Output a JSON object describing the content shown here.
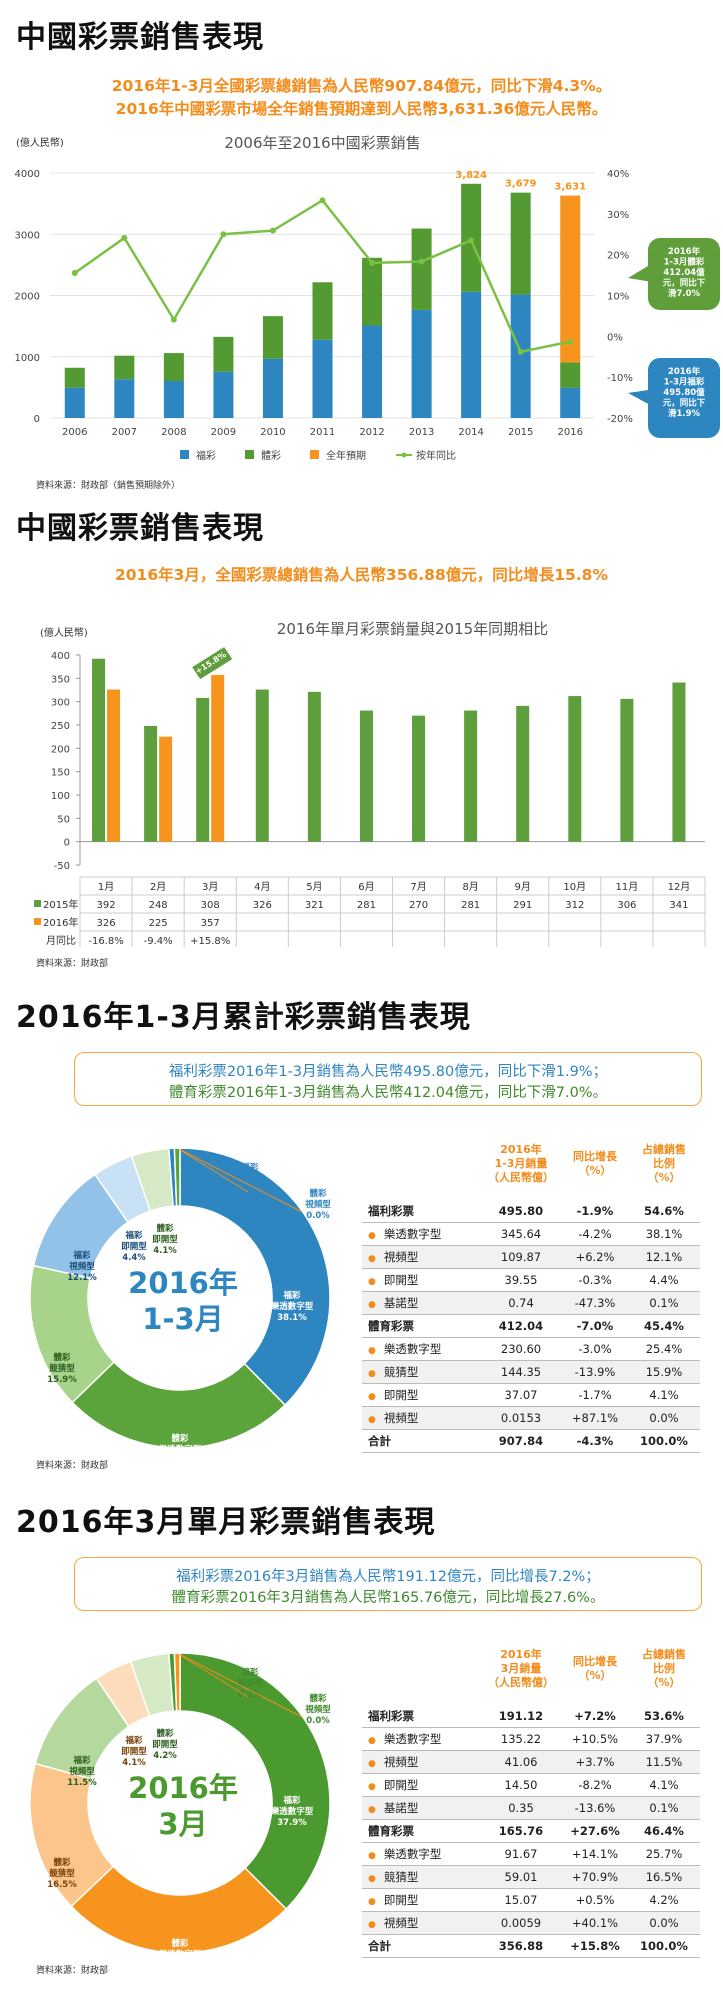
{
  "colors": {
    "welfare": "#2e86c1",
    "sports": "#549a32",
    "forecast": "#f7941d",
    "yoy": "#7ac043",
    "y2015": "#5e9e3c",
    "y2016": "#f7941d",
    "welfare_text": "#2e86c1",
    "sports_text": "#3f8a2e",
    "highlight": "#f28c1c"
  },
  "s1": {
    "title": "中國彩票銷售表現",
    "hl1": "2016年1-3月全國彩票總銷售為人民幣907.84億元，同比下滑4.3%。",
    "hl2": "2016年中國彩票市場全年銷售預期達到人民幣3,631.36億元人民幣。",
    "ylabel": "(億人民幣)",
    "source": "資料來源：財政部（銷售預期除外）",
    "callout_sports": "2016年\n1-3月體彩\n412.04億\n元，同比下\n滑7.0%",
    "callout_welfare": "2016年\n1-3月福彩\n495.80億\n元，同比下\n滑1.9%"
  },
  "s2": {
    "title": "中國彩票銷售表現",
    "hl": "2016年3月，全國彩票總銷售為人民幣356.88億元，同比增長15.8%",
    "ylabel": "(億人民幣)",
    "source": "資料來源：財政部",
    "tbl_row_yoy": "月同比"
  },
  "s3": {
    "title": "2016年1-3月累計彩票銷售表現",
    "box1": "福利彩票2016年1-3月銷售為人民幣495.80億元，同比下滑1.9%；",
    "box2": "體育彩票2016年1-3月銷售為人民幣412.04億元，同比下滑7.0%。",
    "center1": "2016年",
    "center2": "1-3月",
    "source": "資料來源：財政部",
    "col1": "2016年\n1-3月銷量\n（人民幣億）",
    "col2": "同比增長\n（%）",
    "col3": "占總銷售\n比例\n（%）",
    "rows": [
      {
        "name": "福利彩票",
        "v": "495.80",
        "g": "-1.9%",
        "p": "54.6%",
        "kind": "grp"
      },
      {
        "name": "樂透數字型",
        "v": "345.64",
        "g": "-4.2%",
        "p": "38.1%",
        "kind": "sub"
      },
      {
        "name": "視頻型",
        "v": "109.87",
        "g": "+6.2%",
        "p": "12.1%",
        "kind": "sub"
      },
      {
        "name": "即開型",
        "v": "39.55",
        "g": "-0.3%",
        "p": "4.4%",
        "kind": "sub"
      },
      {
        "name": "基諾型",
        "v": "0.74",
        "g": "-47.3%",
        "p": "0.1%",
        "kind": "sub"
      },
      {
        "name": "體育彩票",
        "v": "412.04",
        "g": "-7.0%",
        "p": "45.4%",
        "kind": "grp"
      },
      {
        "name": "樂透數字型",
        "v": "230.60",
        "g": "-3.0%",
        "p": "25.4%",
        "kind": "sub"
      },
      {
        "name": "競猜型",
        "v": "144.35",
        "g": "-13.9%",
        "p": "15.9%",
        "kind": "sub"
      },
      {
        "name": "即開型",
        "v": "37.07",
        "g": "-1.7%",
        "p": "4.1%",
        "kind": "sub"
      },
      {
        "name": "視頻型",
        "v": "0.0153",
        "g": "+87.1%",
        "p": "0.0%",
        "kind": "sub"
      },
      {
        "name": "合計",
        "v": "907.84",
        "g": "-4.3%",
        "p": "100.0%",
        "kind": "tot"
      }
    ]
  },
  "s4": {
    "title": "2016年3月單月彩票銷售表現",
    "box1": "福利彩票2016年3月銷售為人民幣191.12億元，同比增長7.2%；",
    "box2": "體育彩票2016年3月銷售為人民幣165.76億元，同比增長27.6%。",
    "center1": "2016年",
    "center2": "3月",
    "source": "資料來源：財政部",
    "col1": "2016年\n3月銷量\n（人民幣億）",
    "col2": "同比增長\n（%）",
    "col3": "占總銷售\n比例\n（%）",
    "rows": [
      {
        "name": "福利彩票",
        "v": "191.12",
        "g": "+7.2%",
        "p": "53.6%",
        "kind": "grp"
      },
      {
        "name": "樂透數字型",
        "v": "135.22",
        "g": "+10.5%",
        "p": "37.9%",
        "kind": "sub"
      },
      {
        "name": "視頻型",
        "v": "41.06",
        "g": "+3.7%",
        "p": "11.5%",
        "kind": "sub"
      },
      {
        "name": "即開型",
        "v": "14.50",
        "g": "-8.2%",
        "p": "4.1%",
        "kind": "sub"
      },
      {
        "name": "基諾型",
        "v": "0.35",
        "g": "-13.6%",
        "p": "0.1%",
        "kind": "sub"
      },
      {
        "name": "體育彩票",
        "v": "165.76",
        "g": "+27.6%",
        "p": "46.4%",
        "kind": "grp"
      },
      {
        "name": "樂透數字型",
        "v": "91.67",
        "g": "+14.1%",
        "p": "25.7%",
        "kind": "sub"
      },
      {
        "name": "競猜型",
        "v": "59.01",
        "g": "+70.9%",
        "p": "16.5%",
        "kind": "sub"
      },
      {
        "name": "即開型",
        "v": "15.07",
        "g": "+0.5%",
        "p": "4.2%",
        "kind": "sub"
      },
      {
        "name": "視頻型",
        "v": "0.0059",
        "g": "+40.1%",
        "p": "0.0%",
        "kind": "sub"
      },
      {
        "name": "合計",
        "v": "356.88",
        "g": "+15.8%",
        "p": "100.0%",
        "kind": "tot"
      }
    ]
  },
  "chart_data": [
    {
      "type": "bar",
      "title": "2006年至2016中國彩票銷售",
      "ylabel": "(億人民幣)",
      "categories": [
        "2006",
        "2007",
        "2008",
        "2009",
        "2010",
        "2011",
        "2012",
        "2013",
        "2014",
        "2015",
        "2016"
      ],
      "ylim": [
        0,
        4000
      ],
      "y2lim": [
        -20,
        40
      ],
      "yticks": [
        0,
        1000,
        2000,
        3000,
        4000
      ],
      "y2ticks": [
        "40%",
        "30%",
        "20%",
        "10%",
        "0%",
        "-10%",
        "-20%"
      ],
      "series": [
        {
          "name": "福彩",
          "kind": "stack",
          "values": [
            495,
            632,
            604,
            756,
            968,
            1278,
            1510,
            1765,
            2060,
            2015,
            496
          ]
        },
        {
          "name": "體彩",
          "kind": "stack",
          "values": [
            325,
            385,
            456,
            569,
            695,
            938,
            1105,
            1328,
            1764,
            1664,
            412
          ]
        },
        {
          "name": "全年預期",
          "kind": "stack",
          "values": [
            0,
            0,
            0,
            0,
            0,
            0,
            0,
            0,
            0,
            0,
            2723
          ]
        },
        {
          "name": "按年同比",
          "kind": "line",
          "axis": "right",
          "values": [
            15.5,
            24.1,
            4.1,
            25.0,
            25.9,
            33.3,
            18.0,
            18.3,
            23.5,
            -3.8,
            -1.3
          ]
        }
      ],
      "totals_labels": [
        {
          "x": "2014",
          "text": "3,824"
        },
        {
          "x": "2015",
          "text": "3,679"
        },
        {
          "x": "2016",
          "text": "3,631"
        }
      ],
      "legend": "bottom"
    },
    {
      "type": "bar",
      "title": "2016年單月彩票銷量與2015年同期相比",
      "ylabel": "(億人民幣)",
      "categories": [
        "1月",
        "2月",
        "3月",
        "4月",
        "5月",
        "6月",
        "7月",
        "8月",
        "9月",
        "10月",
        "11月",
        "12月"
      ],
      "ylim": [
        -50,
        400
      ],
      "yticks": [
        -50,
        0,
        50,
        100,
        150,
        200,
        250,
        300,
        350,
        400
      ],
      "series": [
        {
          "name": "2015年",
          "values": [
            392,
            248,
            308,
            326,
            321,
            281,
            270,
            281,
            291,
            312,
            306,
            341
          ]
        },
        {
          "name": "2016年",
          "values": [
            326,
            225,
            357,
            null,
            null,
            null,
            null,
            null,
            null,
            null,
            null,
            null
          ]
        }
      ],
      "yoy": [
        "-16.8%",
        "-9.4%",
        "+15.8%",
        "",
        "",
        "",
        "",
        "",
        "",
        "",
        "",
        ""
      ],
      "table_labels": {
        "s2015": [
          "392",
          "248",
          "308",
          "326",
          "321",
          "281",
          "270",
          "281",
          "291",
          "312",
          "306",
          "341"
        ],
        "s2016": [
          "326",
          "225",
          "357",
          "",
          "",
          "",
          "",
          "",
          "",
          "",
          "",
          ""
        ]
      },
      "annotation": "+15.8%",
      "legend": "table"
    },
    {
      "type": "pie",
      "title": "2016年1-3月",
      "slices": [
        {
          "name": "福彩\n樂透數字型",
          "value": 38.1,
          "color": "#2e86c1",
          "tc": "#fff"
        },
        {
          "name": "體彩\n樂透數字型",
          "value": 25.4,
          "color": "#5ba33b",
          "tc": "#fff"
        },
        {
          "name": "體彩\n競猜型",
          "value": 15.9,
          "color": "#a7d38a",
          "tc": "#2d5f20"
        },
        {
          "name": "福彩\n視頻型",
          "value": 12.1,
          "color": "#92c2e8",
          "tc": "#1b4f7c"
        },
        {
          "name": "福彩\n即開型",
          "value": 4.4,
          "color": "#c9e1f4",
          "tc": "#1b4f7c"
        },
        {
          "name": "體彩\n即開型",
          "value": 4.1,
          "color": "#d6e9c6",
          "tc": "#2d5f20"
        },
        {
          "name": "福彩\n基諾型",
          "value": 0.1,
          "color": "#2e86c1",
          "tc": "#2e86c1"
        },
        {
          "name": "體彩\n視頻型",
          "value": 0.0,
          "color": "#5ba33b",
          "tc": "#2e86c1"
        }
      ]
    },
    {
      "type": "pie",
      "title": "2016年3月",
      "slices": [
        {
          "name": "福彩\n樂透數字型",
          "value": 37.9,
          "color": "#4b9a2f",
          "tc": "#fff"
        },
        {
          "name": "體彩\n樂透數字型",
          "value": 25.7,
          "color": "#f7941d",
          "tc": "#fff"
        },
        {
          "name": "體彩\n競猜型",
          "value": 16.5,
          "color": "#fbc58b",
          "tc": "#7a4209"
        },
        {
          "name": "福彩\n視頻型",
          "value": 11.5,
          "color": "#b5d89c",
          "tc": "#2d5f20"
        },
        {
          "name": "福彩\n即開型",
          "value": 4.1,
          "color": "#fcdcba",
          "tc": "#7a4209"
        },
        {
          "name": "體彩\n即開型",
          "value": 4.2,
          "color": "#d5eac4",
          "tc": "#2d5f20"
        },
        {
          "name": "福彩\n基諾型",
          "value": 0.1,
          "color": "#4b9a2f",
          "tc": "#3f8a2e"
        },
        {
          "name": "體彩\n視頻型",
          "value": 0.0,
          "color": "#f7941d",
          "tc": "#3f8a2e"
        }
      ]
    }
  ]
}
